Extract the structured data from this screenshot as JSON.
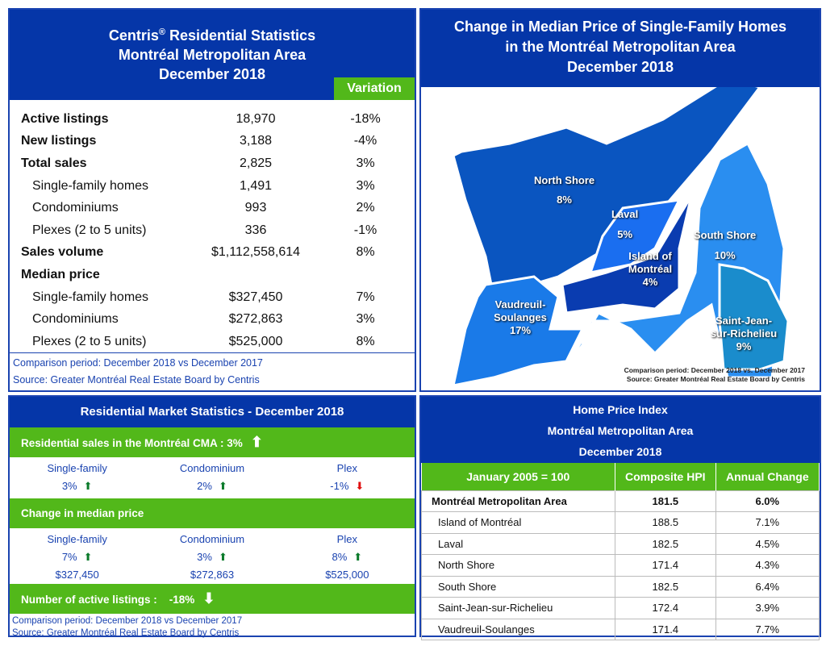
{
  "summary": {
    "title_line1": "Centris",
    "registered": "®",
    "title_line1b": " Residential Statistics",
    "title_line2": "Montréal Metropolitan Area",
    "title_line3": "December 2018",
    "variation_label": "Variation",
    "rows": [
      {
        "label": "Active listings",
        "value": "18,970",
        "variation": "-18%",
        "type": "main"
      },
      {
        "label": "New listings",
        "value": "3,188",
        "variation": "-4%",
        "type": "main"
      },
      {
        "label": "Total sales",
        "value": "2,825",
        "variation": "3%",
        "type": "main"
      },
      {
        "label": "Single-family homes",
        "value": "1,491",
        "variation": "3%",
        "type": "sub"
      },
      {
        "label": "Condominiums",
        "value": "993",
        "variation": "2%",
        "type": "sub"
      },
      {
        "label": "Plexes (2 to 5 units)",
        "value": "336",
        "variation": "-1%",
        "type": "sub"
      },
      {
        "label": "Sales volume",
        "value": "$1,112,558,614",
        "variation": "8%",
        "type": "main"
      },
      {
        "label": "Median price",
        "value": "",
        "variation": "",
        "type": "main"
      },
      {
        "label": "Single-family homes",
        "value": "$327,450",
        "variation": "7%",
        "type": "sub"
      },
      {
        "label": "Condominiums",
        "value": "$272,863",
        "variation": "3%",
        "type": "sub"
      },
      {
        "label": "Plexes (2 to 5 units)",
        "value": "$525,000",
        "variation": "8%",
        "type": "sub"
      }
    ],
    "comparison": "Comparison period: December 2018 vs December 2017",
    "source": "Source: Greater Montréal Real Estate Board by Centris"
  },
  "map": {
    "title_line1": "Change in Median Price of Single-Family Homes",
    "title_line2": "in the Montréal Metropolitan Area",
    "title_line3": "December 2018",
    "regions": [
      {
        "name": "North Shore",
        "value": "8%",
        "color": "#0a55c0"
      },
      {
        "name": "Laval",
        "value": "5%",
        "color": "#1a6ef0"
      },
      {
        "name": "Island of Montréal",
        "value": "4%",
        "color": "#0a3cb0"
      },
      {
        "name": "South Shore",
        "value": "10%",
        "color": "#2a8ef0"
      },
      {
        "name": "Vaudreuil-Soulanges",
        "value": "17%",
        "color": "#1a7ae8"
      },
      {
        "name": "Saint-Jean-sur-Richelieu",
        "value": "9%",
        "color": "#1a8ccc"
      }
    ],
    "comparison": "Comparison period: December 2018 vs. December 2017",
    "source": "Source: Greater Montréal Real Estate Board by Centris"
  },
  "market": {
    "title": "Residential Market Statistics - December 2018",
    "sales_label": "Residential sales in the Montréal CMA :  3%",
    "categories": [
      "Single-family",
      "Condominium",
      "Plex"
    ],
    "sales": [
      {
        "v": "3%",
        "dir": "up"
      },
      {
        "v": "2%",
        "dir": "up"
      },
      {
        "v": "-1%",
        "dir": "down"
      }
    ],
    "median_label": "Change in median price",
    "median": [
      {
        "v": "7%",
        "dir": "up",
        "price": "$327,450"
      },
      {
        "v": "3%",
        "dir": "up",
        "price": "$272,863"
      },
      {
        "v": "8%",
        "dir": "up",
        "price": "$525,000"
      }
    ],
    "listings_label": "Number of active listings :    -18%",
    "comparison": "Comparison period: December 2018 vs December 2017",
    "source": "Source: Greater Montréal Real Estate Board by Centris"
  },
  "hpi": {
    "title_line1": "Home Price Index",
    "title_line2": "Montréal Metropolitan Area",
    "title_line3": "December 2018",
    "headers": [
      "January  2005 = 100",
      "Composite HPI",
      "Annual Change"
    ],
    "rows": [
      {
        "area": "Montréal Metropolitan Area",
        "hpi": "181.5",
        "change": "6.0%"
      },
      {
        "area": "Island of Montréal",
        "hpi": "188.5",
        "change": "7.1%"
      },
      {
        "area": "Laval",
        "hpi": "182.5",
        "change": "4.5%"
      },
      {
        "area": "North Shore",
        "hpi": "171.4",
        "change": "4.3%"
      },
      {
        "area": "South Shore",
        "hpi": "182.5",
        "change": "6.4%"
      },
      {
        "area": "Saint-Jean-sur-Richelieu",
        "hpi": "172.4",
        "change": "3.9%"
      },
      {
        "area": "Vaudreuil-Soulanges",
        "hpi": "171.4",
        "change": "7.7%"
      }
    ]
  },
  "colors": {
    "blue": "#0536a8",
    "green": "#52b81a",
    "arrow_up": "#0a7a2a",
    "arrow_down": "#e01010"
  }
}
